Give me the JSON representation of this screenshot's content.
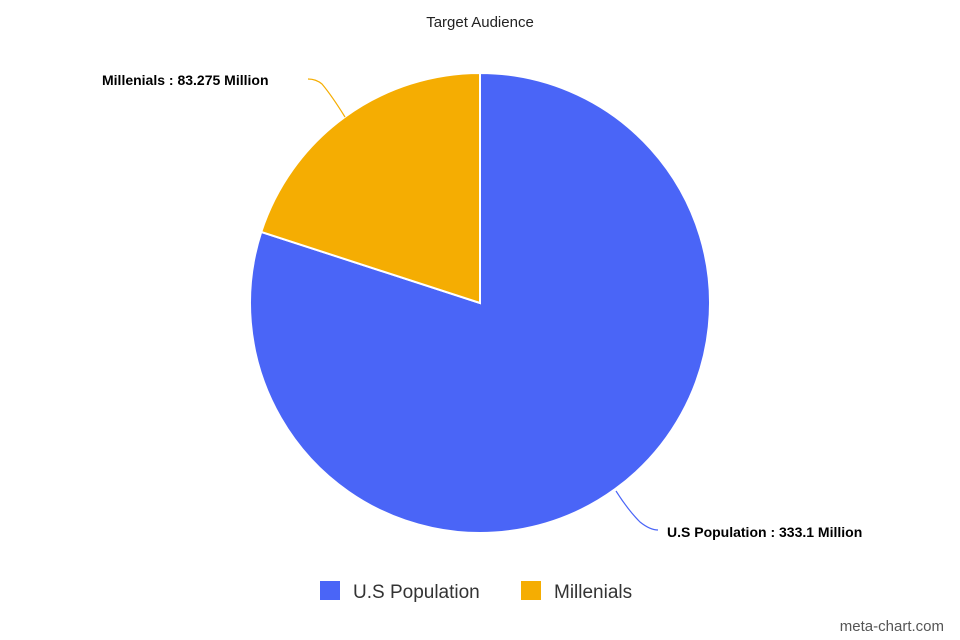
{
  "chart_data": {
    "type": "pie",
    "title": "Target Audience",
    "series": [
      {
        "name": "U.S Population",
        "value": 333.1,
        "label": "U.S Population : 333.1 Million",
        "color": "#4a65f7"
      },
      {
        "name": "Millenials",
        "value": 83.275,
        "label": "Millenials : 83.275 Million",
        "color": "#f5ad02"
      }
    ],
    "legend_position": "bottom",
    "start_angle_deg": 0,
    "direction": "clockwise"
  },
  "watermark": "meta-chart.com"
}
